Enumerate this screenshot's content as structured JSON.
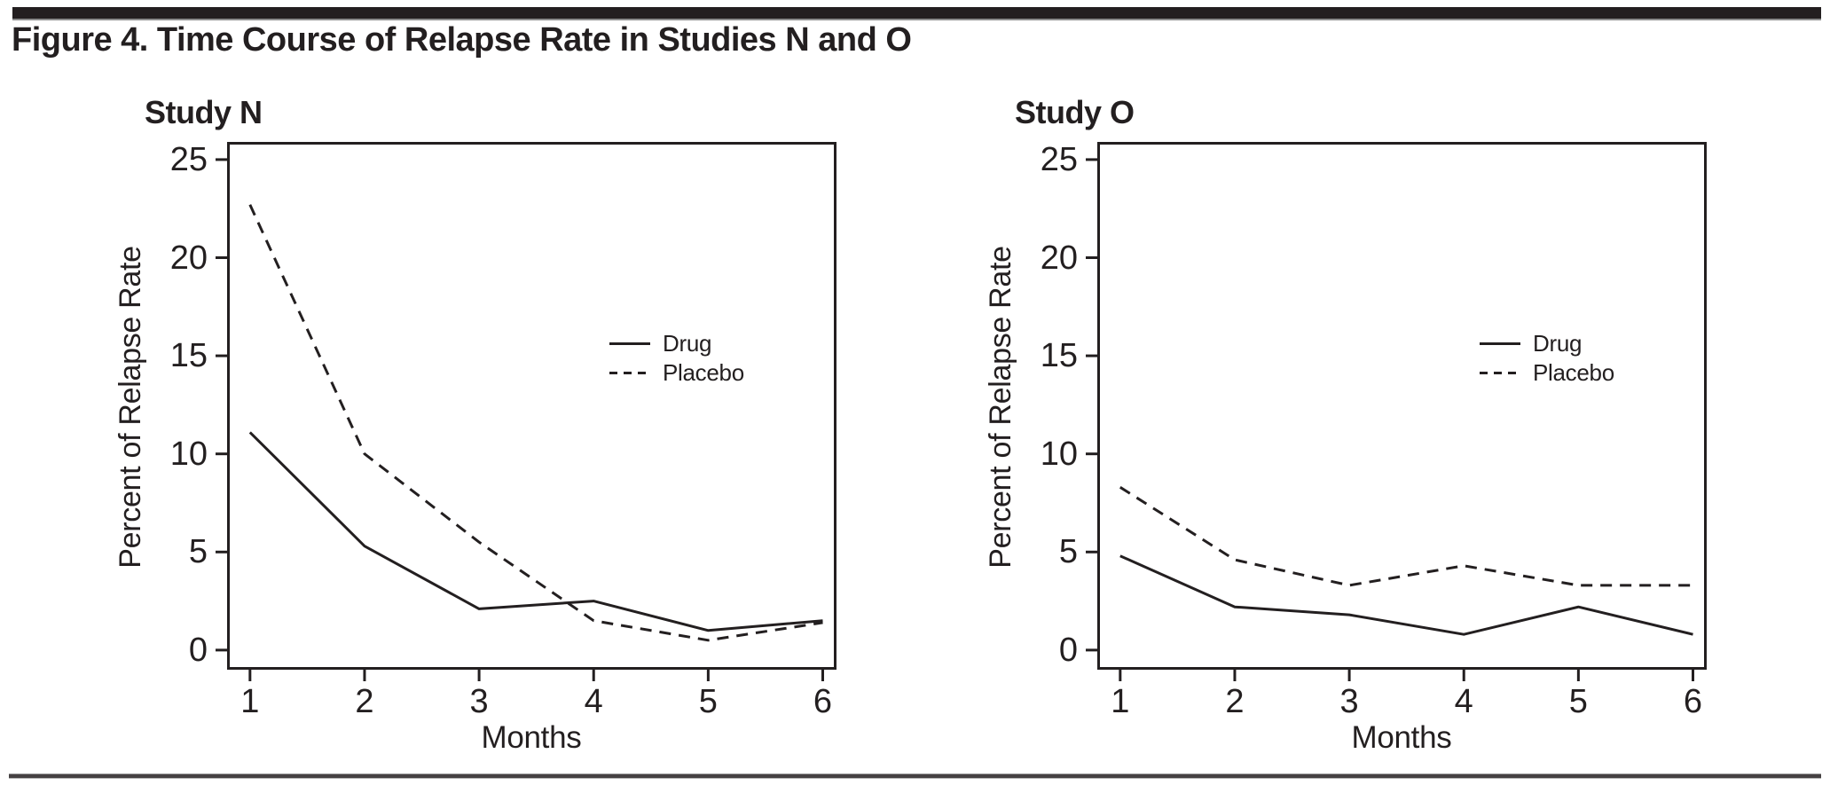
{
  "figure": {
    "title": "Figure 4. Time Course of Relapse Rate in Studies N and O"
  },
  "colors": {
    "ink": "#231f20",
    "background": "#ffffff"
  },
  "chart_data": [
    {
      "type": "line",
      "title": "Study N",
      "xlabel": "Months",
      "ylabel": "Percent of Relapse Rate",
      "x": [
        1,
        2,
        3,
        4,
        5,
        6
      ],
      "xticks": [
        1,
        2,
        3,
        4,
        5,
        6
      ],
      "yticks": [
        0,
        5,
        10,
        15,
        20,
        25
      ],
      "xlim": [
        0.8,
        6.12
      ],
      "ylim": [
        -1.0,
        25.9
      ],
      "grid": false,
      "legend_position": "center-right",
      "series": [
        {
          "name": "Drug",
          "style": "solid",
          "values": [
            11.1,
            5.3,
            2.1,
            2.5,
            1.0,
            1.5
          ]
        },
        {
          "name": "Placebo",
          "style": "dashed",
          "values": [
            22.7,
            10.0,
            5.5,
            1.5,
            0.5,
            1.4
          ]
        }
      ]
    },
    {
      "type": "line",
      "title": "Study O",
      "xlabel": "Months",
      "ylabel": "Percent of Relapse Rate",
      "x": [
        1,
        2,
        3,
        4,
        5,
        6
      ],
      "xticks": [
        1,
        2,
        3,
        4,
        5,
        6
      ],
      "yticks": [
        0,
        5,
        10,
        15,
        20,
        25
      ],
      "xlim": [
        0.8,
        6.12
      ],
      "ylim": [
        -1.0,
        25.9
      ],
      "grid": false,
      "legend_position": "center-right",
      "series": [
        {
          "name": "Drug",
          "style": "solid",
          "values": [
            4.8,
            2.2,
            1.8,
            0.8,
            2.2,
            0.8
          ]
        },
        {
          "name": "Placebo",
          "style": "dashed",
          "values": [
            8.3,
            4.6,
            3.3,
            4.3,
            3.3,
            3.3
          ]
        }
      ]
    }
  ]
}
